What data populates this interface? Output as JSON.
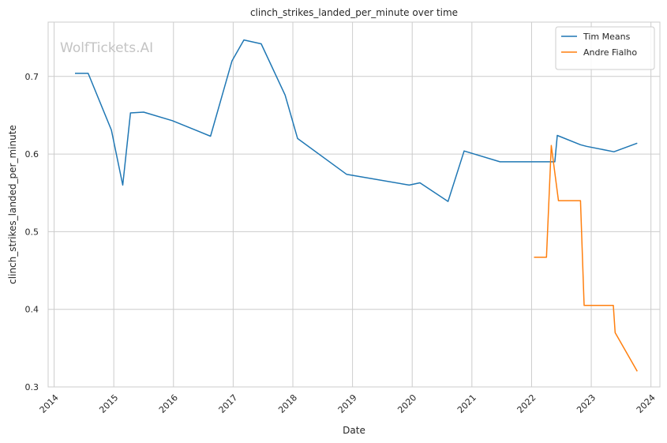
{
  "chart_data": {
    "type": "line",
    "title": "clinch_strikes_landed_per_minute over time",
    "xlabel": "Date",
    "ylabel": "clinch_strikes_landed_per_minute",
    "watermark": "WolfTickets.AI",
    "xlim": [
      2013.9,
      2024.15
    ],
    "ylim": [
      0.3,
      0.77
    ],
    "x_ticks": [
      2014,
      2015,
      2016,
      2017,
      2018,
      2019,
      2020,
      2021,
      2022,
      2023,
      2024
    ],
    "x_tick_labels": [
      "2014",
      "2015",
      "2016",
      "2017",
      "2018",
      "2019",
      "2020",
      "2021",
      "2022",
      "2023",
      "2024"
    ],
    "y_ticks": [
      0.3,
      0.4,
      0.5,
      0.6,
      0.7
    ],
    "y_tick_labels": [
      "0.3",
      "0.4",
      "0.5",
      "0.6",
      "0.7"
    ],
    "grid": true,
    "legend_position": "top-right",
    "series": [
      {
        "name": "Tim Means",
        "color": "#1f77b4",
        "points": [
          [
            2014.35,
            0.704
          ],
          [
            2014.57,
            0.704
          ],
          [
            2014.96,
            0.631
          ],
          [
            2015.15,
            0.56
          ],
          [
            2015.28,
            0.653
          ],
          [
            2015.5,
            0.654
          ],
          [
            2015.98,
            0.643
          ],
          [
            2016.62,
            0.623
          ],
          [
            2016.98,
            0.72
          ],
          [
            2017.18,
            0.747
          ],
          [
            2017.47,
            0.742
          ],
          [
            2017.87,
            0.676
          ],
          [
            2018.08,
            0.62
          ],
          [
            2018.9,
            0.574
          ],
          [
            2019.95,
            0.56
          ],
          [
            2020.13,
            0.563
          ],
          [
            2020.6,
            0.539
          ],
          [
            2020.87,
            0.604
          ],
          [
            2021.47,
            0.59
          ],
          [
            2022.39,
            0.59
          ],
          [
            2022.43,
            0.624
          ],
          [
            2022.82,
            0.612
          ],
          [
            2022.92,
            0.61
          ],
          [
            2023.38,
            0.603
          ],
          [
            2023.77,
            0.614
          ]
        ]
      },
      {
        "name": "Andre Fialho",
        "color": "#ff7f0e",
        "points": [
          [
            2022.04,
            0.467
          ],
          [
            2022.25,
            0.467
          ],
          [
            2022.33,
            0.611
          ],
          [
            2022.45,
            0.54
          ],
          [
            2022.82,
            0.54
          ],
          [
            2022.88,
            0.405
          ],
          [
            2023.37,
            0.405
          ],
          [
            2023.4,
            0.37
          ],
          [
            2023.77,
            0.32
          ]
        ]
      }
    ]
  }
}
